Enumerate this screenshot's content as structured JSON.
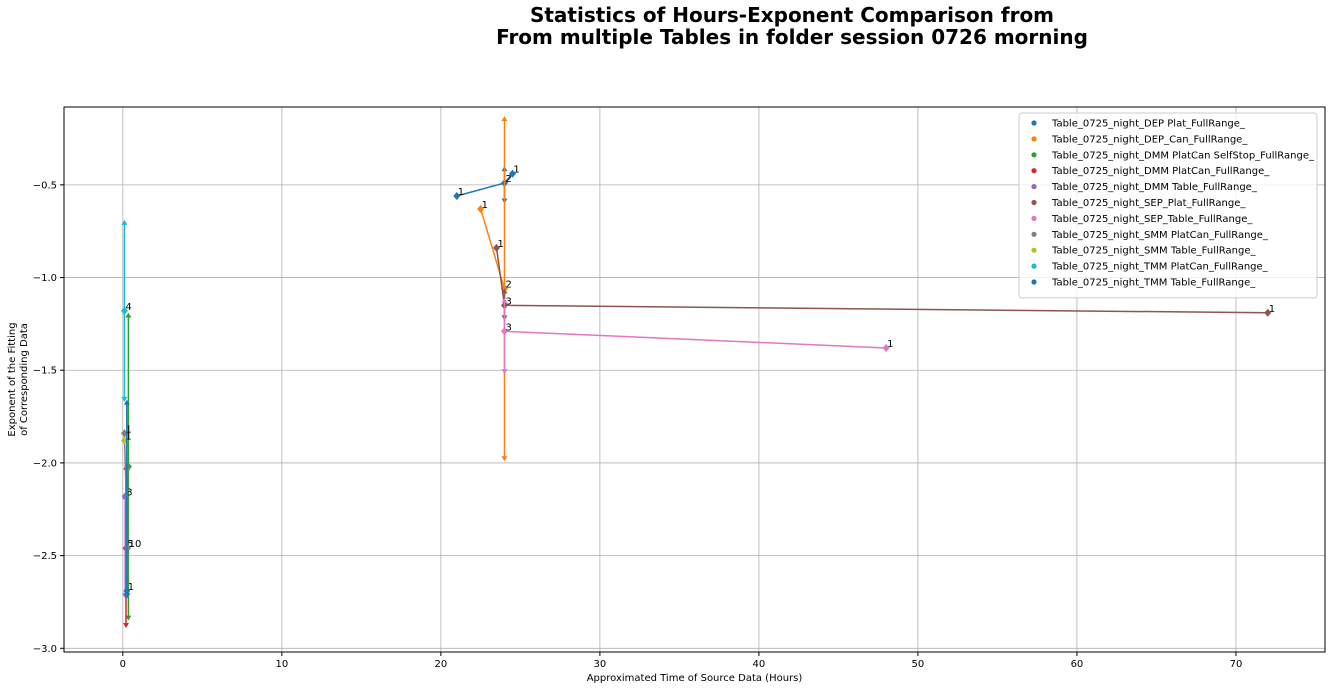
{
  "chart_data": {
    "type": "line",
    "title_lines": [
      "Statistics of Hours-Exponent Comparison from",
      "From multiple Tables in folder session 0726 morning"
    ],
    "xlabel": "Approximated Time of Source Data (Hours)",
    "ylabel_lines": [
      "Exponent of the Fitting",
      "of Corresponding Data"
    ],
    "xlim": [
      -3.7,
      75.6
    ],
    "ylim": [
      -3.02,
      -0.08
    ],
    "xticks": [
      0,
      10,
      20,
      30,
      40,
      50,
      60,
      70
    ],
    "xtick_labels": [
      "0",
      "10",
      "20",
      "30",
      "40",
      "50",
      "60",
      "70"
    ],
    "yticks": [
      -3.0,
      -2.5,
      -2.0,
      -1.5,
      -1.0,
      -0.5
    ],
    "ytick_labels": [
      "−3.0",
      "−2.5",
      "−2.0",
      "−1.5",
      "−1.0",
      "−0.5"
    ],
    "grid": true,
    "legend_position": "top-right",
    "series": [
      {
        "name": "Table_0725_night_DEP Plat_FullRange_",
        "color": "#1f77b4",
        "points": [
          {
            "x": 21,
            "y": -0.56,
            "label": "1"
          },
          {
            "x": 24,
            "y": -0.49,
            "label": "2"
          },
          {
            "x": 24.5,
            "y": -0.44,
            "label": "1"
          }
        ],
        "errorbars": [
          {
            "x": 24,
            "ylow": -0.59,
            "yhigh": -0.41
          }
        ]
      },
      {
        "name": "Table_0725_night_DEP_Can_FullRange_",
        "color": "#ff7f0e",
        "points": [
          {
            "x": 22.5,
            "y": -0.63,
            "label": "1"
          },
          {
            "x": 24,
            "y": -1.06,
            "label": "2"
          }
        ],
        "errorbars": [
          {
            "x": 24,
            "ylow": -1.98,
            "yhigh": -0.14
          }
        ]
      },
      {
        "name": "Table_0725_night_DMM PlatCan SelfStop_FullRange_",
        "color": "#2ca02c",
        "points": [
          {
            "x": 0.35,
            "y": -2.02,
            "label": ""
          }
        ],
        "errorbars": [
          {
            "x": 0.35,
            "ylow": -2.84,
            "yhigh": -1.2
          }
        ]
      },
      {
        "name": "Table_0725_night_DMM PlatCan_FullRange_",
        "color": "#d62728",
        "points": [
          {
            "x": 0.2,
            "y": -2.46,
            "label": "5"
          }
        ],
        "errorbars": [
          {
            "x": 0.2,
            "ylow": -2.88,
            "yhigh": -2.02
          }
        ]
      },
      {
        "name": "Table_0725_night_DMM Table_FullRange_",
        "color": "#9467bd",
        "points": [
          {
            "x": 0.15,
            "y": -2.18,
            "label": "3"
          }
        ],
        "errorbars": [
          {
            "x": 0.15,
            "ylow": -2.72,
            "yhigh": -2.18
          }
        ]
      },
      {
        "name": "Table_0725_night_SEP_Plat_FullRange_",
        "color": "#8c564b",
        "points": [
          {
            "x": 23.5,
            "y": -0.84,
            "label": "1"
          },
          {
            "x": 24,
            "y": -1.15,
            "label": "3"
          },
          {
            "x": 72,
            "y": -1.19,
            "label": "1"
          }
        ],
        "errorbars": [
          {
            "x": 24,
            "ylow": -1.22,
            "yhigh": -1.07
          }
        ]
      },
      {
        "name": "Table_0725_night_SEP_Table_FullRange_",
        "color": "#e377c2",
        "points": [
          {
            "x": 24,
            "y": -1.29,
            "label": "3"
          },
          {
            "x": 48,
            "y": -1.38,
            "label": "1"
          }
        ],
        "errorbars": [
          {
            "x": 24,
            "ylow": -1.51,
            "yhigh": -1.12
          }
        ]
      },
      {
        "name": "Table_0725_night_SMM PlatCan_FullRange_",
        "color": "#7f7f7f",
        "points": [
          {
            "x": 0.1,
            "y": -1.84,
            "label": "1"
          },
          {
            "x": 0.3,
            "y": -2.46,
            "label": "10"
          }
        ],
        "errorbars": [
          {
            "x": 0.3,
            "ylow": -2.72,
            "yhigh": -2.02
          }
        ]
      },
      {
        "name": "Table_0725_night_SMM Table_FullRange_",
        "color": "#bcbd22",
        "points": [
          {
            "x": 0.1,
            "y": -1.88,
            "label": "1"
          }
        ],
        "errorbars": []
      },
      {
        "name": "Table_0725_night_TMM PlatCan_FullRange_",
        "color": "#17becf",
        "points": [
          {
            "x": 0.1,
            "y": -1.18,
            "label": "4"
          }
        ],
        "errorbars": [
          {
            "x": 0.1,
            "ylow": -1.66,
            "yhigh": -0.7
          }
        ]
      },
      {
        "name": "Table_0725_night_TMM Table_FullRange_",
        "color": "#1f77b4",
        "points": [
          {
            "x": 0.25,
            "y": -2.69,
            "label": "1"
          }
        ],
        "errorbars": [
          {
            "x": 0.25,
            "ylow": -2.72,
            "yhigh": -1.67
          }
        ]
      }
    ]
  }
}
